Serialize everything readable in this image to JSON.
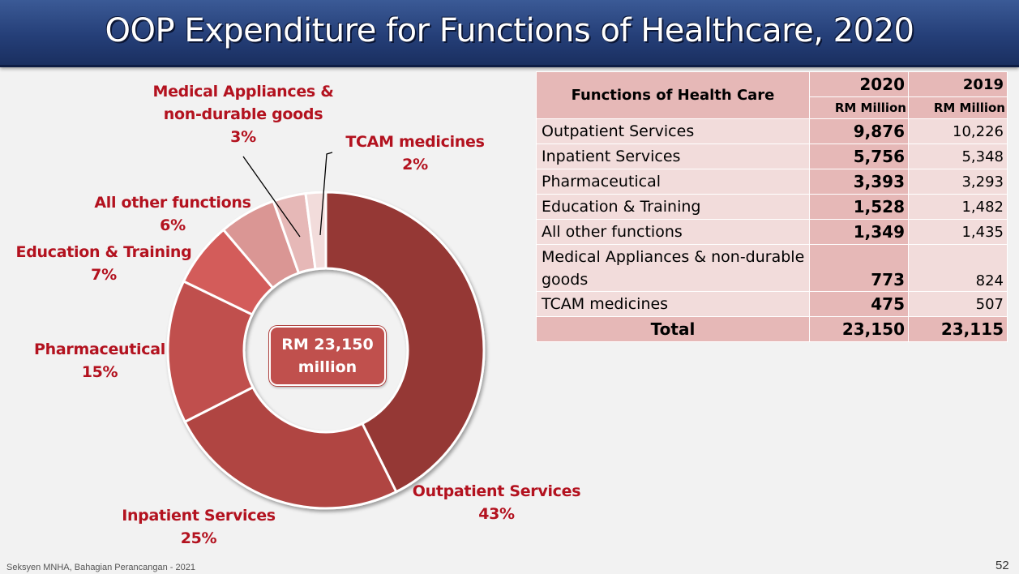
{
  "title": "OOP Expenditure for Functions of Healthcare, 2020",
  "chart_data": {
    "type": "pie",
    "style": "donut",
    "center_label": [
      "RM 23,150",
      "million"
    ],
    "slices": [
      {
        "name": "Outpatient Services",
        "pct_label": "43%",
        "value": 9876,
        "color": "#953735"
      },
      {
        "name": "Inpatient Services",
        "pct_label": "25%",
        "value": 5756,
        "color": "#b04542"
      },
      {
        "name": "Pharmaceutical",
        "pct_label": "15%",
        "value": 3393,
        "color": "#c0504d"
      },
      {
        "name": "Education & Training",
        "pct_label": "7%",
        "value": 1528,
        "color": "#d35c5a"
      },
      {
        "name": "All other functions",
        "pct_label": "6%",
        "value": 1349,
        "color": "#da9694"
      },
      {
        "name": "Medical Appliances & non-durable goods",
        "pct_label": "3%",
        "value": 773,
        "color": "#e6b8b7"
      },
      {
        "name": "TCAM medicines",
        "pct_label": "2%",
        "value": 475,
        "color": "#f2dcdb"
      }
    ]
  },
  "labels": {
    "outpatient": [
      "Outpatient Services",
      "43%"
    ],
    "inpatient": [
      "Inpatient Services",
      "25%"
    ],
    "pharma": [
      "Pharmaceutical",
      "15%"
    ],
    "education": [
      "Education & Training",
      "7%"
    ],
    "other": [
      "All other functions",
      "6%"
    ],
    "appliances": [
      "Medical Appliances &",
      "non-durable goods",
      "3%"
    ],
    "tcam": [
      "TCAM medicines",
      "2%"
    ]
  },
  "table": {
    "header_function": "Functions of Health Care",
    "year_2020": "2020",
    "year_2019": "2019",
    "unit_2020": "RM Million",
    "unit_2019": "RM Million",
    "rows": [
      {
        "name": "Outpatient Services",
        "v2020": "9,876",
        "v2019": "10,226"
      },
      {
        "name": "Inpatient Services",
        "v2020": "5,756",
        "v2019": "5,348"
      },
      {
        "name": "Pharmaceutical",
        "v2020": "3,393",
        "v2019": "3,293"
      },
      {
        "name": "Education & Training",
        "v2020": "1,528",
        "v2019": "1,482"
      },
      {
        "name": "All other functions",
        "v2020": "1,349",
        "v2019": "1,435"
      },
      {
        "name": "Medical Appliances & non-durable goods",
        "v2020": "773",
        "v2019": "824"
      },
      {
        "name": "TCAM medicines",
        "v2020": "475",
        "v2019": "507"
      }
    ],
    "total_label": "Total",
    "total_2020": "23,150",
    "total_2019": "23,115"
  },
  "footer": "Seksyen MNHA, Bahagian Perancangan - 2021",
  "page_number": "52"
}
